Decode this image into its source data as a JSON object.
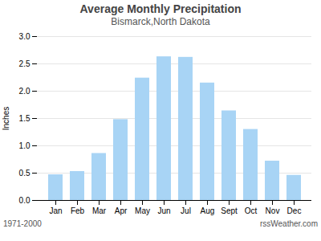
{
  "chart_data": {
    "type": "bar",
    "title": "Average Monthly Precipitation",
    "subtitle": "Bismarck,North Dakota",
    "ylabel": "Inches",
    "categories": [
      "Jan",
      "Feb",
      "Mar",
      "Apr",
      "May",
      "Jun",
      "Jul",
      "Aug",
      "Sept",
      "Oct",
      "Nov",
      "Dec"
    ],
    "values": [
      0.47,
      0.53,
      0.86,
      1.48,
      2.24,
      2.63,
      2.62,
      2.15,
      1.64,
      1.3,
      0.72,
      0.46
    ],
    "color": "#a8d4f5",
    "ylim": [
      0,
      3.0
    ],
    "yticks": [
      {
        "value": 0.0,
        "label": "0.0"
      },
      0.5,
      {
        "value": 1.0,
        "label": "1.0"
      },
      1.5,
      {
        "value": 2.0,
        "label": "2.0"
      },
      2.5,
      {
        "value": 3.0,
        "label": "3.0"
      }
    ],
    "grid": true,
    "annotations": [
      "1971-2000",
      "rssWeather.com"
    ]
  }
}
